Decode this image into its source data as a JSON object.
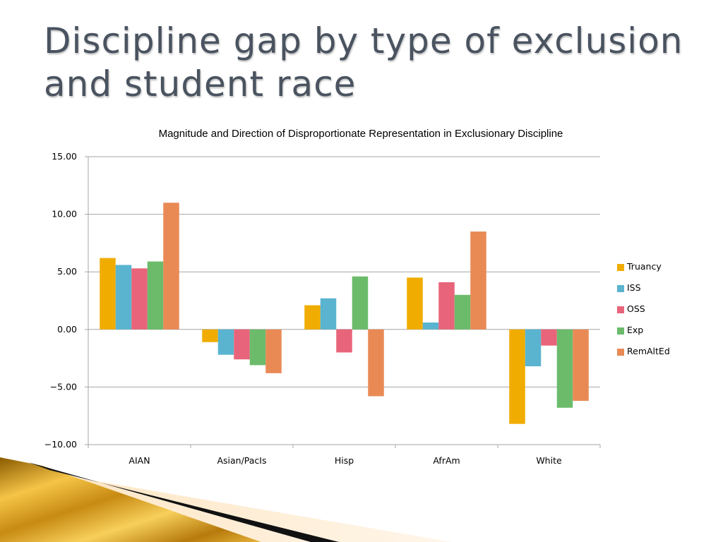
{
  "slide": {
    "title": "Discipline gap by type of exclusion and student race"
  },
  "chart_data": {
    "type": "bar",
    "title": "Magnitude and Direction of Disproportionate Representation in Exclusionary Discipline",
    "xlabel": "",
    "ylabel": "",
    "categories": [
      "AIAN",
      "Asian/PacIs",
      "Hisp",
      "AfrAm",
      "White"
    ],
    "series": [
      {
        "name": "Truancy",
        "color": "#f0ac00",
        "values": [
          6.2,
          -1.1,
          2.1,
          4.5,
          -8.2
        ]
      },
      {
        "name": "ISS",
        "color": "#5ab4d0",
        "values": [
          5.6,
          -2.2,
          2.7,
          0.6,
          -3.2
        ]
      },
      {
        "name": "OSS",
        "color": "#e8647a",
        "values": [
          5.3,
          -2.6,
          -2.0,
          4.1,
          -1.4
        ]
      },
      {
        "name": "Exp",
        "color": "#6bbb6b",
        "values": [
          5.9,
          -3.1,
          4.6,
          3.0,
          -6.8
        ]
      },
      {
        "name": "RemAltEd",
        "color": "#e98a55",
        "values": [
          11.0,
          -3.8,
          -5.8,
          8.5,
          -6.2
        ]
      }
    ],
    "ylim": [
      -10,
      15
    ],
    "yticks": [
      "15.00",
      "10.00",
      "5.00",
      "0.00",
      "−5.00",
      "−10.00"
    ],
    "ytick_values": [
      15,
      10,
      5,
      0,
      -5,
      -10
    ],
    "grid": true,
    "legend_position": "right"
  }
}
